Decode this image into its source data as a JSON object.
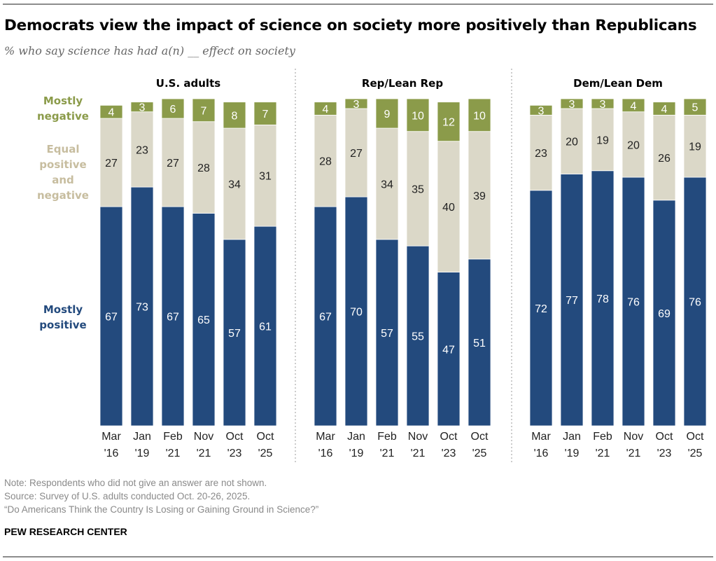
{
  "title": "Democrats view the impact of science on society more positively than Republicans",
  "subtitle": "% who say science has had a(n) __ effect on society",
  "legend": {
    "negative": [
      "Mostly",
      "negative"
    ],
    "equal": [
      "Equal",
      "positive",
      "and",
      "negative"
    ],
    "positive": [
      "Mostly",
      "positive"
    ]
  },
  "colors": {
    "positive": "#234a7d",
    "equal": "#dbd8c8",
    "negative": "#8b9b4a",
    "legend_equal": "#c7bd9f"
  },
  "notes": [
    "Note: Respondents who did not give an answer are not shown.",
    "Source: Survey of U.S. adults conducted Oct. 20-26, 2025.",
    "“Do Americans Think the Country Is Losing or Gaining Ground in Science?”"
  ],
  "brand": "PEW RESEARCH CENTER",
  "chart_data": {
    "type": "bar",
    "stacked": true,
    "ylim": [
      0,
      100
    ],
    "categories": [
      [
        "Mar",
        "'16"
      ],
      [
        "Jan",
        "'19"
      ],
      [
        "Feb",
        "'21"
      ],
      [
        "Nov",
        "'21"
      ],
      [
        "Oct",
        "'23"
      ],
      [
        "Oct",
        "'25"
      ]
    ],
    "series_names": [
      "Mostly positive",
      "Equal positive and negative",
      "Mostly negative"
    ],
    "panels": [
      {
        "title": "U.S. adults",
        "positive": [
          67,
          73,
          67,
          65,
          57,
          61
        ],
        "equal": [
          27,
          23,
          27,
          28,
          34,
          31
        ],
        "negative": [
          4,
          3,
          6,
          7,
          8,
          7
        ]
      },
      {
        "title": "Rep/Lean Rep",
        "positive": [
          67,
          70,
          57,
          55,
          47,
          51
        ],
        "equal": [
          28,
          27,
          34,
          35,
          40,
          39
        ],
        "negative": [
          4,
          3,
          9,
          10,
          12,
          10
        ]
      },
      {
        "title": "Dem/Lean Dem",
        "positive": [
          72,
          77,
          78,
          76,
          69,
          76
        ],
        "equal": [
          23,
          20,
          19,
          20,
          26,
          19
        ],
        "negative": [
          3,
          3,
          3,
          4,
          4,
          5
        ]
      }
    ]
  }
}
